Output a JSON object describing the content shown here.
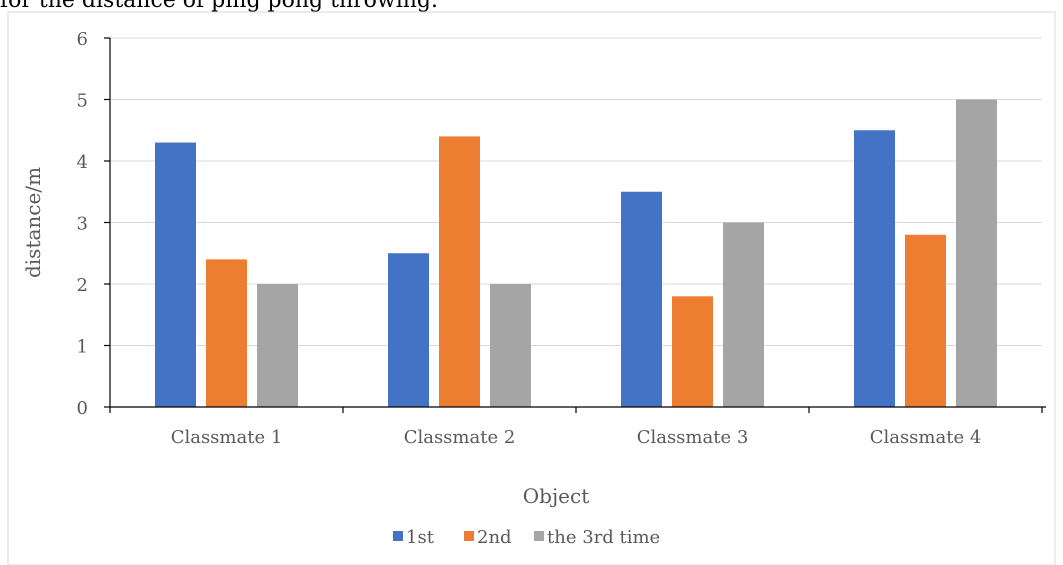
{
  "page": {
    "top_text": "for the distance of ping pong throwing."
  },
  "chart_data": {
    "type": "bar",
    "categories": [
      "Classmate 1",
      "Classmate 2",
      "Classmate 3",
      "Classmate 4"
    ],
    "series": [
      {
        "name": "1st",
        "values": [
          4.3,
          2.5,
          3.5,
          4.5
        ],
        "color": "#4472C4"
      },
      {
        "name": "2nd",
        "values": [
          2.4,
          4.4,
          1.8,
          2.8
        ],
        "color": "#ED7D31"
      },
      {
        "name": "the 3rd time",
        "values": [
          2.0,
          2.0,
          3.0,
          5.0
        ],
        "color": "#A5A5A5"
      }
    ],
    "title": "",
    "xlabel": "Object",
    "ylabel": "distance/m",
    "ylim": [
      0,
      6
    ],
    "yticks": [
      "0",
      "1",
      "2",
      "3",
      "4",
      "5",
      "6"
    ],
    "grid": true,
    "legend_position": "bottom"
  }
}
